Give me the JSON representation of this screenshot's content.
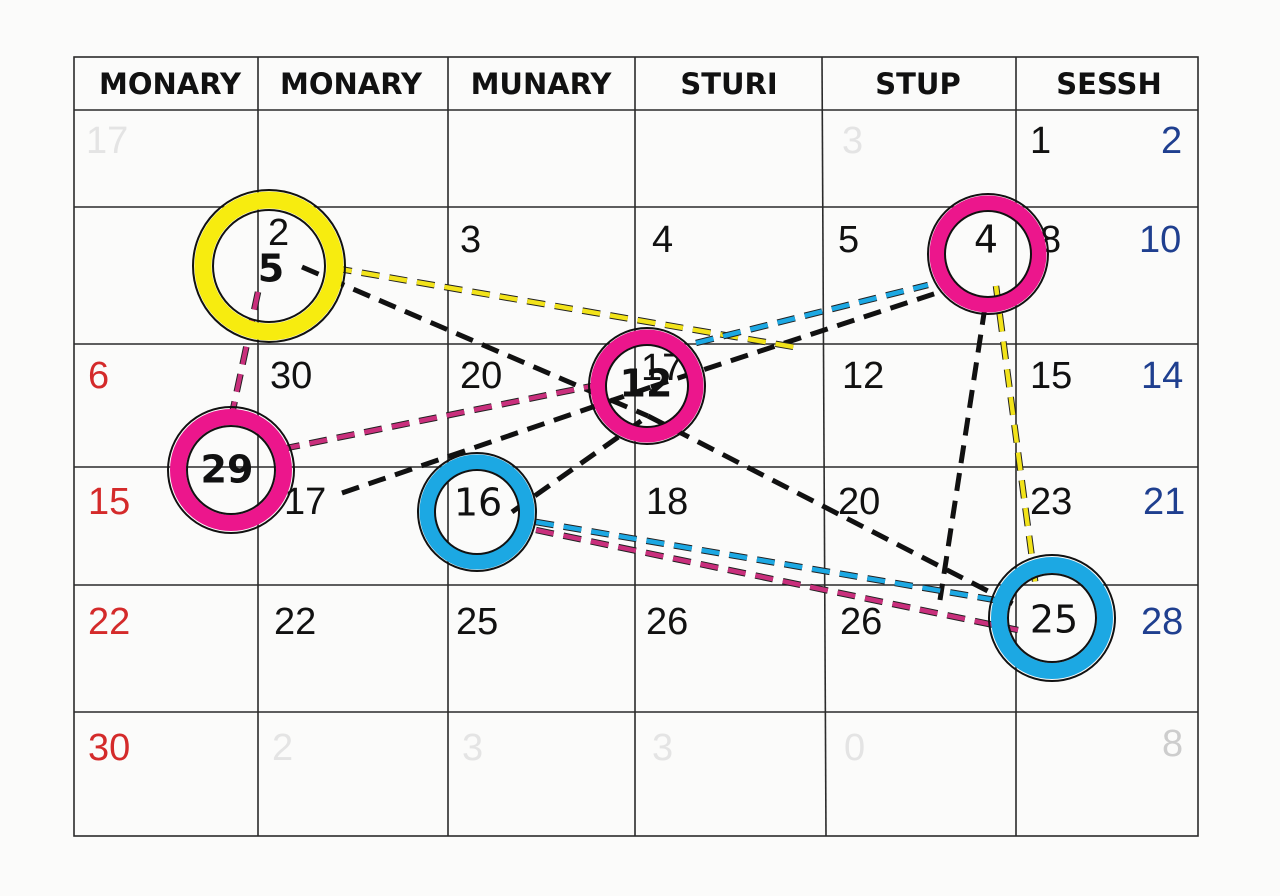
{
  "calendar": {
    "headers": [
      "MONARY",
      "MONARY",
      "MUNARY",
      "STURI",
      "STUP",
      "SESSH"
    ],
    "days": [
      {
        "text": "17",
        "tone": "faint"
      },
      {
        "text": "3",
        "tone": "faint"
      },
      {
        "text": "1",
        "tone": "black"
      },
      {
        "text": "2",
        "tone": "blue"
      },
      {
        "text": "2",
        "tone": "black"
      },
      {
        "text": "3",
        "tone": "black"
      },
      {
        "text": "4",
        "tone": "black"
      },
      {
        "text": "5",
        "tone": "black"
      },
      {
        "text": "8",
        "tone": "black"
      },
      {
        "text": "10",
        "tone": "blue"
      },
      {
        "text": "6",
        "tone": "red"
      },
      {
        "text": "30",
        "tone": "black"
      },
      {
        "text": "20",
        "tone": "black"
      },
      {
        "text": "17",
        "tone": "black"
      },
      {
        "text": "12",
        "tone": "black"
      },
      {
        "text": "15",
        "tone": "black"
      },
      {
        "text": "14",
        "tone": "blue"
      },
      {
        "text": "15",
        "tone": "red"
      },
      {
        "text": "17",
        "tone": "black"
      },
      {
        "text": "18",
        "tone": "black"
      },
      {
        "text": "20",
        "tone": "black"
      },
      {
        "text": "23",
        "tone": "black"
      },
      {
        "text": "21",
        "tone": "blue"
      },
      {
        "text": "22",
        "tone": "red"
      },
      {
        "text": "22",
        "tone": "black"
      },
      {
        "text": "25",
        "tone": "black"
      },
      {
        "text": "26",
        "tone": "black"
      },
      {
        "text": "26",
        "tone": "black"
      },
      {
        "text": "28",
        "tone": "blue"
      },
      {
        "text": "30",
        "tone": "red"
      },
      {
        "text": "2",
        "tone": "faint"
      },
      {
        "text": "3",
        "tone": "faint"
      },
      {
        "text": "3",
        "tone": "faint"
      },
      {
        "text": "0",
        "tone": "faint"
      },
      {
        "text": "8",
        "tone": "faint-gray"
      }
    ],
    "circles": [
      {
        "label": "5",
        "color": "#f7ec0f"
      },
      {
        "label": "4",
        "color": "#ec168c"
      },
      {
        "label": "12",
        "color": "#ec168c"
      },
      {
        "label": "29",
        "color": "#ec168c"
      },
      {
        "label": "16",
        "color": "#1ca8e3"
      },
      {
        "label": "25",
        "color": "#1ca8e3"
      }
    ],
    "connector_colors": {
      "black": "#111111",
      "yellow": "#f2e31a",
      "magenta": "#c92f7c",
      "cyan": "#1ca8e3"
    }
  }
}
